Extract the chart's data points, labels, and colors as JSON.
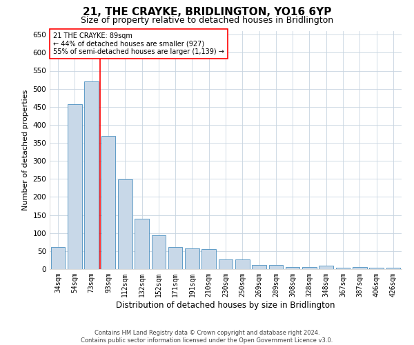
{
  "title": "21, THE CRAYKE, BRIDLINGTON, YO16 6YP",
  "subtitle": "Size of property relative to detached houses in Bridlington",
  "xlabel": "Distribution of detached houses by size in Bridlington",
  "ylabel": "Number of detached properties",
  "categories": [
    "34sqm",
    "54sqm",
    "73sqm",
    "93sqm",
    "112sqm",
    "132sqm",
    "152sqm",
    "171sqm",
    "191sqm",
    "210sqm",
    "230sqm",
    "250sqm",
    "269sqm",
    "289sqm",
    "308sqm",
    "328sqm",
    "348sqm",
    "367sqm",
    "387sqm",
    "406sqm",
    "426sqm"
  ],
  "values": [
    62,
    457,
    520,
    370,
    248,
    140,
    93,
    62,
    57,
    55,
    26,
    26,
    12,
    12,
    6,
    6,
    10,
    3,
    5,
    3,
    3
  ],
  "bar_color": "#c8d8e8",
  "bar_edge_color": "#4a90c0",
  "red_line_index": 3,
  "annotation_text_line1": "21 THE CRAYKE: 89sqm",
  "annotation_text_line2": "← 44% of detached houses are smaller (927)",
  "annotation_text_line3": "55% of semi-detached houses are larger (1,139) →",
  "ylim": [
    0,
    660
  ],
  "yticks": [
    0,
    50,
    100,
    150,
    200,
    250,
    300,
    350,
    400,
    450,
    500,
    550,
    600,
    650
  ],
  "footer_line1": "Contains HM Land Registry data © Crown copyright and database right 2024.",
  "footer_line2": "Contains public sector information licensed under the Open Government Licence v3.0.",
  "bg_color": "#ffffff",
  "grid_color": "#c8d4e0"
}
